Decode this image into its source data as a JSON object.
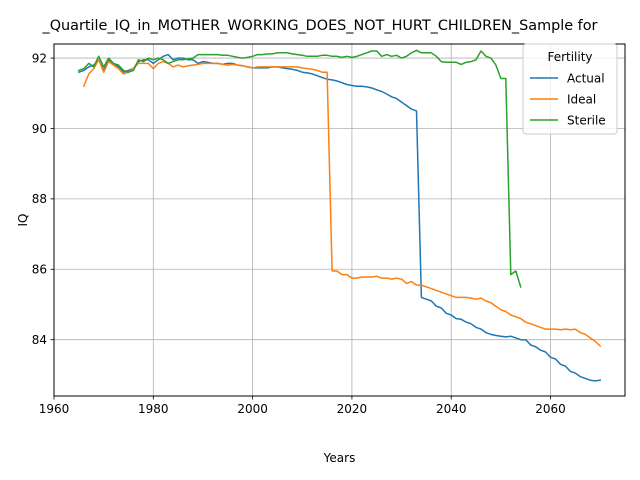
{
  "chart_data": {
    "type": "line",
    "title": "_Quartile_IQ_in_MOTHER_WORKING_DOES_NOT_HURT_CHILDREN_Sample for",
    "xlabel": "Years",
    "ylabel": "IQ",
    "xlim": [
      1960,
      2075
    ],
    "ylim": [
      82.4,
      92.4
    ],
    "xticks": [
      1960,
      1980,
      2000,
      2020,
      2040,
      2060
    ],
    "yticks": [
      84,
      86,
      88,
      90,
      92
    ],
    "grid": true,
    "legend": {
      "title": "Fertility",
      "position": "top-right"
    },
    "series": [
      {
        "name": "Actual",
        "color": "#1f77b4",
        "points": [
          [
            1965,
            91.6
          ],
          [
            1966,
            91.65
          ],
          [
            1967,
            91.75
          ],
          [
            1968,
            91.8
          ],
          [
            1969,
            91.95
          ],
          [
            1970,
            91.65
          ],
          [
            1971,
            91.95
          ],
          [
            1972,
            91.85
          ],
          [
            1973,
            91.75
          ],
          [
            1974,
            91.6
          ],
          [
            1975,
            91.65
          ],
          [
            1976,
            91.7
          ],
          [
            1977,
            91.9
          ],
          [
            1978,
            91.95
          ],
          [
            1979,
            91.95
          ],
          [
            1980,
            91.85
          ],
          [
            1981,
            91.95
          ],
          [
            1982,
            92.05
          ],
          [
            1983,
            92.1
          ],
          [
            1984,
            91.95
          ],
          [
            1985,
            92.0
          ],
          [
            1986,
            92.0
          ],
          [
            1987,
            91.95
          ],
          [
            1988,
            91.95
          ],
          [
            1989,
            91.85
          ],
          [
            1990,
            91.9
          ],
          [
            1991,
            91.88
          ],
          [
            1992,
            91.85
          ],
          [
            1993,
            91.85
          ],
          [
            1994,
            91.82
          ],
          [
            1995,
            91.85
          ],
          [
            1996,
            91.85
          ],
          [
            1997,
            91.8
          ],
          [
            1998,
            91.78
          ],
          [
            1999,
            91.75
          ],
          [
            2000,
            91.72
          ],
          [
            2001,
            91.72
          ],
          [
            2002,
            91.72
          ],
          [
            2003,
            91.72
          ],
          [
            2004,
            91.75
          ],
          [
            2005,
            91.75
          ],
          [
            2006,
            91.72
          ],
          [
            2007,
            91.7
          ],
          [
            2008,
            91.68
          ],
          [
            2009,
            91.65
          ],
          [
            2010,
            91.6
          ],
          [
            2011,
            91.58
          ],
          [
            2012,
            91.55
          ],
          [
            2013,
            91.5
          ],
          [
            2014,
            91.45
          ],
          [
            2015,
            91.4
          ],
          [
            2016,
            91.38
          ],
          [
            2017,
            91.35
          ],
          [
            2018,
            91.3
          ],
          [
            2019,
            91.25
          ],
          [
            2020,
            91.22
          ],
          [
            2021,
            91.2
          ],
          [
            2022,
            91.2
          ],
          [
            2023,
            91.18
          ],
          [
            2024,
            91.15
          ],
          [
            2025,
            91.1
          ],
          [
            2026,
            91.05
          ],
          [
            2027,
            90.98
          ],
          [
            2028,
            90.9
          ],
          [
            2029,
            90.85
          ],
          [
            2030,
            90.75
          ],
          [
            2031,
            90.65
          ],
          [
            2032,
            90.55
          ],
          [
            2033,
            90.5
          ],
          [
            2034,
            85.2
          ],
          [
            2035,
            85.15
          ],
          [
            2036,
            85.1
          ],
          [
            2037,
            84.95
          ],
          [
            2038,
            84.9
          ],
          [
            2039,
            84.75
          ],
          [
            2040,
            84.7
          ],
          [
            2041,
            84.6
          ],
          [
            2042,
            84.58
          ],
          [
            2043,
            84.5
          ],
          [
            2044,
            84.45
          ],
          [
            2045,
            84.35
          ],
          [
            2046,
            84.3
          ],
          [
            2047,
            84.2
          ],
          [
            2048,
            84.15
          ],
          [
            2049,
            84.12
          ],
          [
            2050,
            84.1
          ],
          [
            2051,
            84.08
          ],
          [
            2052,
            84.1
          ],
          [
            2053,
            84.05
          ],
          [
            2054,
            84.0
          ],
          [
            2055,
            84.0
          ],
          [
            2056,
            83.85
          ],
          [
            2057,
            83.8
          ],
          [
            2058,
            83.7
          ],
          [
            2059,
            83.65
          ],
          [
            2060,
            83.5
          ],
          [
            2061,
            83.45
          ],
          [
            2062,
            83.3
          ],
          [
            2063,
            83.25
          ],
          [
            2064,
            83.1
          ],
          [
            2065,
            83.05
          ],
          [
            2066,
            82.95
          ],
          [
            2067,
            82.9
          ],
          [
            2068,
            82.85
          ],
          [
            2069,
            82.83
          ],
          [
            2070,
            82.85
          ]
        ]
      },
      {
        "name": "Ideal",
        "color": "#ff7f0e",
        "points": [
          [
            1966,
            91.2
          ],
          [
            1967,
            91.55
          ],
          [
            1968,
            91.7
          ],
          [
            1969,
            91.95
          ],
          [
            1970,
            91.6
          ],
          [
            1971,
            91.9
          ],
          [
            1972,
            91.8
          ],
          [
            1973,
            91.7
          ],
          [
            1974,
            91.55
          ],
          [
            1975,
            91.6
          ],
          [
            1976,
            91.7
          ],
          [
            1977,
            91.85
          ],
          [
            1978,
            91.85
          ],
          [
            1979,
            91.85
          ],
          [
            1980,
            91.7
          ],
          [
            1981,
            91.85
          ],
          [
            1982,
            91.9
          ],
          [
            1983,
            91.85
          ],
          [
            1984,
            91.75
          ],
          [
            1985,
            91.8
          ],
          [
            1986,
            91.75
          ],
          [
            1987,
            91.78
          ],
          [
            1988,
            91.8
          ],
          [
            1989,
            91.82
          ],
          [
            1990,
            91.85
          ],
          [
            1991,
            91.85
          ],
          [
            1992,
            91.85
          ],
          [
            1993,
            91.85
          ],
          [
            1994,
            91.82
          ],
          [
            1995,
            91.8
          ],
          [
            1996,
            91.82
          ],
          [
            1997,
            91.8
          ],
          [
            1998,
            91.78
          ],
          [
            1999,
            91.75
          ],
          [
            2000,
            91.72
          ],
          [
            2001,
            91.75
          ],
          [
            2002,
            91.75
          ],
          [
            2003,
            91.75
          ],
          [
            2004,
            91.75
          ],
          [
            2005,
            91.75
          ],
          [
            2006,
            91.75
          ],
          [
            2007,
            91.75
          ],
          [
            2008,
            91.75
          ],
          [
            2009,
            91.75
          ],
          [
            2010,
            91.72
          ],
          [
            2011,
            91.7
          ],
          [
            2012,
            91.68
          ],
          [
            2013,
            91.65
          ],
          [
            2014,
            91.6
          ],
          [
            2015,
            91.6
          ],
          [
            2016,
            85.95
          ],
          [
            2017,
            85.95
          ],
          [
            2018,
            85.85
          ],
          [
            2019,
            85.85
          ],
          [
            2020,
            85.75
          ],
          [
            2021,
            85.75
          ],
          [
            2022,
            85.78
          ],
          [
            2023,
            85.78
          ],
          [
            2024,
            85.78
          ],
          [
            2025,
            85.8
          ],
          [
            2026,
            85.75
          ],
          [
            2027,
            85.75
          ],
          [
            2028,
            85.72
          ],
          [
            2029,
            85.75
          ],
          [
            2030,
            85.72
          ],
          [
            2031,
            85.6
          ],
          [
            2032,
            85.65
          ],
          [
            2033,
            85.55
          ],
          [
            2034,
            85.55
          ],
          [
            2035,
            85.5
          ],
          [
            2036,
            85.45
          ],
          [
            2037,
            85.4
          ],
          [
            2038,
            85.35
          ],
          [
            2039,
            85.3
          ],
          [
            2040,
            85.25
          ],
          [
            2041,
            85.2
          ],
          [
            2042,
            85.2
          ],
          [
            2043,
            85.2
          ],
          [
            2044,
            85.18
          ],
          [
            2045,
            85.15
          ],
          [
            2046,
            85.18
          ],
          [
            2047,
            85.1
          ],
          [
            2048,
            85.05
          ],
          [
            2049,
            84.95
          ],
          [
            2050,
            84.85
          ],
          [
            2051,
            84.8
          ],
          [
            2052,
            84.7
          ],
          [
            2053,
            84.65
          ],
          [
            2054,
            84.6
          ],
          [
            2055,
            84.5
          ],
          [
            2056,
            84.45
          ],
          [
            2057,
            84.4
          ],
          [
            2058,
            84.35
          ],
          [
            2059,
            84.3
          ],
          [
            2060,
            84.3
          ],
          [
            2061,
            84.3
          ],
          [
            2062,
            84.28
          ],
          [
            2063,
            84.3
          ],
          [
            2064,
            84.28
          ],
          [
            2065,
            84.3
          ],
          [
            2066,
            84.2
          ],
          [
            2067,
            84.15
          ],
          [
            2068,
            84.05
          ],
          [
            2069,
            83.95
          ],
          [
            2070,
            83.82
          ]
        ]
      },
      {
        "name": "Sterile",
        "color": "#2ca02c",
        "points": [
          [
            1965,
            91.65
          ],
          [
            1966,
            91.7
          ],
          [
            1967,
            91.85
          ],
          [
            1968,
            91.75
          ],
          [
            1969,
            92.05
          ],
          [
            1970,
            91.75
          ],
          [
            1971,
            92.0
          ],
          [
            1972,
            91.85
          ],
          [
            1973,
            91.8
          ],
          [
            1974,
            91.65
          ],
          [
            1975,
            91.6
          ],
          [
            1976,
            91.65
          ],
          [
            1977,
            91.95
          ],
          [
            1978,
            91.9
          ],
          [
            1979,
            92.0
          ],
          [
            1980,
            91.95
          ],
          [
            1981,
            92.0
          ],
          [
            1982,
            91.95
          ],
          [
            1983,
            91.85
          ],
          [
            1984,
            91.9
          ],
          [
            1985,
            91.95
          ],
          [
            1986,
            91.95
          ],
          [
            1987,
            91.98
          ],
          [
            1988,
            92.0
          ],
          [
            1989,
            92.1
          ],
          [
            1990,
            92.1
          ],
          [
            1991,
            92.1
          ],
          [
            1992,
            92.1
          ],
          [
            1993,
            92.1
          ],
          [
            1994,
            92.08
          ],
          [
            1995,
            92.08
          ],
          [
            1996,
            92.05
          ],
          [
            1997,
            92.02
          ],
          [
            1998,
            92.0
          ],
          [
            1999,
            92.02
          ],
          [
            2000,
            92.05
          ],
          [
            2001,
            92.1
          ],
          [
            2002,
            92.1
          ],
          [
            2003,
            92.12
          ],
          [
            2004,
            92.12
          ],
          [
            2005,
            92.15
          ],
          [
            2006,
            92.15
          ],
          [
            2007,
            92.15
          ],
          [
            2008,
            92.12
          ],
          [
            2009,
            92.1
          ],
          [
            2010,
            92.08
          ],
          [
            2011,
            92.05
          ],
          [
            2012,
            92.05
          ],
          [
            2013,
            92.05
          ],
          [
            2014,
            92.08
          ],
          [
            2015,
            92.08
          ],
          [
            2016,
            92.05
          ],
          [
            2017,
            92.05
          ],
          [
            2018,
            92.02
          ],
          [
            2019,
            92.05
          ],
          [
            2020,
            92.02
          ],
          [
            2021,
            92.05
          ],
          [
            2022,
            92.1
          ],
          [
            2023,
            92.15
          ],
          [
            2024,
            92.2
          ],
          [
            2025,
            92.2
          ],
          [
            2026,
            92.05
          ],
          [
            2027,
            92.1
          ],
          [
            2028,
            92.05
          ],
          [
            2029,
            92.08
          ],
          [
            2030,
            92.0
          ],
          [
            2031,
            92.05
          ],
          [
            2032,
            92.15
          ],
          [
            2033,
            92.22
          ],
          [
            2034,
            92.15
          ],
          [
            2035,
            92.15
          ],
          [
            2036,
            92.15
          ],
          [
            2037,
            92.05
          ],
          [
            2038,
            91.9
          ],
          [
            2039,
            91.88
          ],
          [
            2040,
            91.88
          ],
          [
            2041,
            91.88
          ],
          [
            2042,
            91.82
          ],
          [
            2043,
            91.88
          ],
          [
            2044,
            91.9
          ],
          [
            2045,
            91.95
          ],
          [
            2046,
            92.2
          ],
          [
            2047,
            92.05
          ],
          [
            2048,
            92.0
          ],
          [
            2049,
            91.8
          ],
          [
            2050,
            91.42
          ],
          [
            2051,
            91.42
          ],
          [
            2052,
            85.85
          ],
          [
            2053,
            85.95
          ],
          [
            2054,
            85.5
          ]
        ]
      }
    ]
  }
}
